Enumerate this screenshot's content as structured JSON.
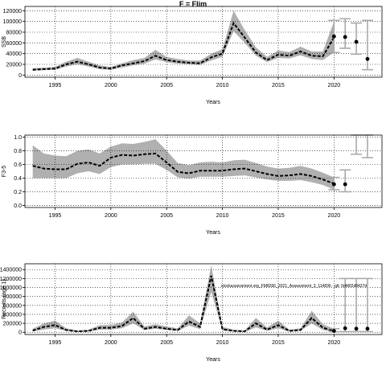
{
  "title": "F = Flim",
  "watermark": "stockassessment.org_FM8266_2021_Assessment_3_114836 - git: 0d46f2d8437d",
  "colors": {
    "band": "#b0b0b0",
    "line": "#000000",
    "grid": "#000000",
    "forecast": "#aaaaaa"
  },
  "chart_data": [
    {
      "type": "line",
      "ylabel": "SSB",
      "xlabel": "Years",
      "xlim": [
        1992.3,
        2024.3
      ],
      "ylim": [
        -4000,
        128000
      ],
      "xticks": [
        1995,
        2000,
        2005,
        2010,
        2015,
        2020
      ],
      "yticks": [
        0,
        20000,
        40000,
        60000,
        80000,
        100000,
        120000
      ],
      "x": [
        1993,
        1994,
        1995,
        1996,
        1997,
        1998,
        1999,
        2000,
        2001,
        2002,
        2003,
        2004,
        2005,
        2006,
        2007,
        2008,
        2009,
        2010,
        2011,
        2012,
        2013,
        2014,
        2015,
        2016,
        2017,
        2018,
        2019,
        2020
      ],
      "estimate": [
        10000,
        11000,
        12000,
        20000,
        25000,
        20000,
        14000,
        12000,
        18000,
        22000,
        26000,
        36000,
        28000,
        25000,
        23000,
        22000,
        33000,
        40000,
        97000,
        70000,
        42000,
        28000,
        38000,
        36000,
        44000,
        36000,
        35000,
        70000
      ],
      "lower": [
        8000,
        9000,
        10000,
        16000,
        20000,
        16000,
        11000,
        10000,
        14000,
        18000,
        21000,
        29000,
        24000,
        21000,
        20000,
        19000,
        27000,
        34000,
        82000,
        60000,
        36000,
        24000,
        32000,
        31000,
        37000,
        30000,
        28000,
        42000
      ],
      "upper": [
        13000,
        14000,
        15000,
        25000,
        32000,
        25000,
        18000,
        15000,
        22000,
        28000,
        32000,
        47000,
        34000,
        30000,
        27000,
        27000,
        40000,
        48000,
        120000,
        84000,
        52000,
        34000,
        46000,
        43000,
        53000,
        44000,
        44000,
        100000
      ],
      "forecast": [
        {
          "x": 2020,
          "y": 72000,
          "lo": 42000,
          "hi": 102000
        },
        {
          "x": 2021,
          "y": 71000,
          "lo": 50000,
          "hi": 105000
        },
        {
          "x": 2022,
          "y": 62000,
          "lo": 39000,
          "hi": 97000
        },
        {
          "x": 2023,
          "y": 30000,
          "lo": 10000,
          "hi": 102000
        }
      ]
    },
    {
      "type": "line",
      "ylabel": "F3-5",
      "xlabel": "Years",
      "xlim": [
        1992.3,
        2024.3
      ],
      "ylim": [
        -0.03,
        1.03
      ],
      "xticks": [
        1995,
        2000,
        2005,
        2010,
        2015,
        2020
      ],
      "yticks": [
        0.0,
        0.2,
        0.4,
        0.6,
        0.8,
        1.0
      ],
      "ytickLabels": [
        "0.0",
        "0.2",
        "0.4",
        "0.6",
        "0.8",
        "1.0"
      ],
      "x": [
        1993,
        1994,
        1995,
        1996,
        1997,
        1998,
        1999,
        2000,
        2001,
        2002,
        2003,
        2004,
        2005,
        2006,
        2007,
        2008,
        2009,
        2010,
        2011,
        2012,
        2013,
        2014,
        2015,
        2016,
        2017,
        2018,
        2019,
        2020
      ],
      "estimate": [
        0.58,
        0.54,
        0.53,
        0.53,
        0.61,
        0.63,
        0.58,
        0.7,
        0.74,
        0.73,
        0.75,
        0.76,
        0.63,
        0.49,
        0.47,
        0.51,
        0.51,
        0.51,
        0.53,
        0.54,
        0.5,
        0.46,
        0.43,
        0.44,
        0.46,
        0.43,
        0.38,
        0.32
      ],
      "lower": [
        0.4,
        0.4,
        0.4,
        0.4,
        0.47,
        0.5,
        0.46,
        0.56,
        0.6,
        0.6,
        0.61,
        0.61,
        0.52,
        0.41,
        0.39,
        0.42,
        0.42,
        0.42,
        0.43,
        0.44,
        0.41,
        0.38,
        0.36,
        0.36,
        0.37,
        0.34,
        0.3,
        0.23
      ],
      "upper": [
        0.88,
        0.76,
        0.73,
        0.72,
        0.8,
        0.82,
        0.76,
        0.86,
        0.91,
        0.9,
        0.93,
        0.97,
        0.8,
        0.62,
        0.59,
        0.63,
        0.64,
        0.63,
        0.66,
        0.67,
        0.62,
        0.57,
        0.54,
        0.55,
        0.58,
        0.54,
        0.48,
        0.41
      ],
      "forecast": [
        {
          "x": 2020,
          "y": 0.31,
          "lo": 0.23,
          "hi": 0.41
        },
        {
          "x": 2021,
          "y": 0.31,
          "lo": 0.2,
          "hi": 0.52
        },
        {
          "x": 2022,
          "y": null,
          "lo": 0.75,
          "hi": 1.03
        },
        {
          "x": 2023,
          "y": null,
          "lo": 0.7,
          "hi": 1.03
        }
      ]
    },
    {
      "type": "line",
      "ylabel": "Recruits (age 1)",
      "xlabel": "Years",
      "xlim": [
        1992.3,
        2024.3
      ],
      "ylim": [
        -50000,
        1530000
      ],
      "xticks": [
        1995,
        2000,
        2005,
        2010,
        2015,
        2020
      ],
      "yticks": [
        0,
        200000,
        400000,
        600000,
        800000,
        1000000,
        1200000,
        1400000
      ],
      "ytickLabels": [
        "0",
        "200000",
        "400000",
        "600000",
        "800000",
        "1000000",
        "1200000",
        "1400000"
      ],
      "x": [
        1993,
        1994,
        1995,
        1996,
        1997,
        1998,
        1999,
        2000,
        2001,
        2002,
        2003,
        2004,
        2005,
        2006,
        2007,
        2008,
        2009,
        2010,
        2011,
        2012,
        2013,
        2014,
        2015,
        2016,
        2017,
        2018,
        2019,
        2020
      ],
      "estimate": [
        40000,
        120000,
        160000,
        50000,
        20000,
        30000,
        100000,
        100000,
        140000,
        320000,
        80000,
        120000,
        80000,
        50000,
        240000,
        120000,
        1260000,
        70000,
        30000,
        20000,
        200000,
        60000,
        160000,
        30000,
        50000,
        320000,
        100000,
        30000
      ],
      "lower": [
        20000,
        60000,
        90000,
        30000,
        10000,
        15000,
        60000,
        60000,
        90000,
        200000,
        50000,
        80000,
        50000,
        30000,
        150000,
        70000,
        900000,
        40000,
        15000,
        10000,
        110000,
        30000,
        90000,
        15000,
        30000,
        200000,
        50000,
        10000
      ],
      "upper": [
        80000,
        200000,
        260000,
        90000,
        40000,
        60000,
        160000,
        160000,
        220000,
        460000,
        130000,
        180000,
        130000,
        90000,
        380000,
        200000,
        1500000,
        120000,
        60000,
        40000,
        320000,
        110000,
        260000,
        60000,
        90000,
        480000,
        180000,
        80000
      ],
      "forecast": [
        {
          "x": 2020,
          "y": 30000,
          "lo": 10000,
          "hi": 80000
        },
        {
          "x": 2021,
          "y": 90000,
          "lo": 15000,
          "hi": 1200000
        },
        {
          "x": 2022,
          "y": 80000,
          "lo": 15000,
          "hi": 1200000
        },
        {
          "x": 2023,
          "y": 80000,
          "lo": 15000,
          "hi": 1200000
        }
      ]
    }
  ]
}
